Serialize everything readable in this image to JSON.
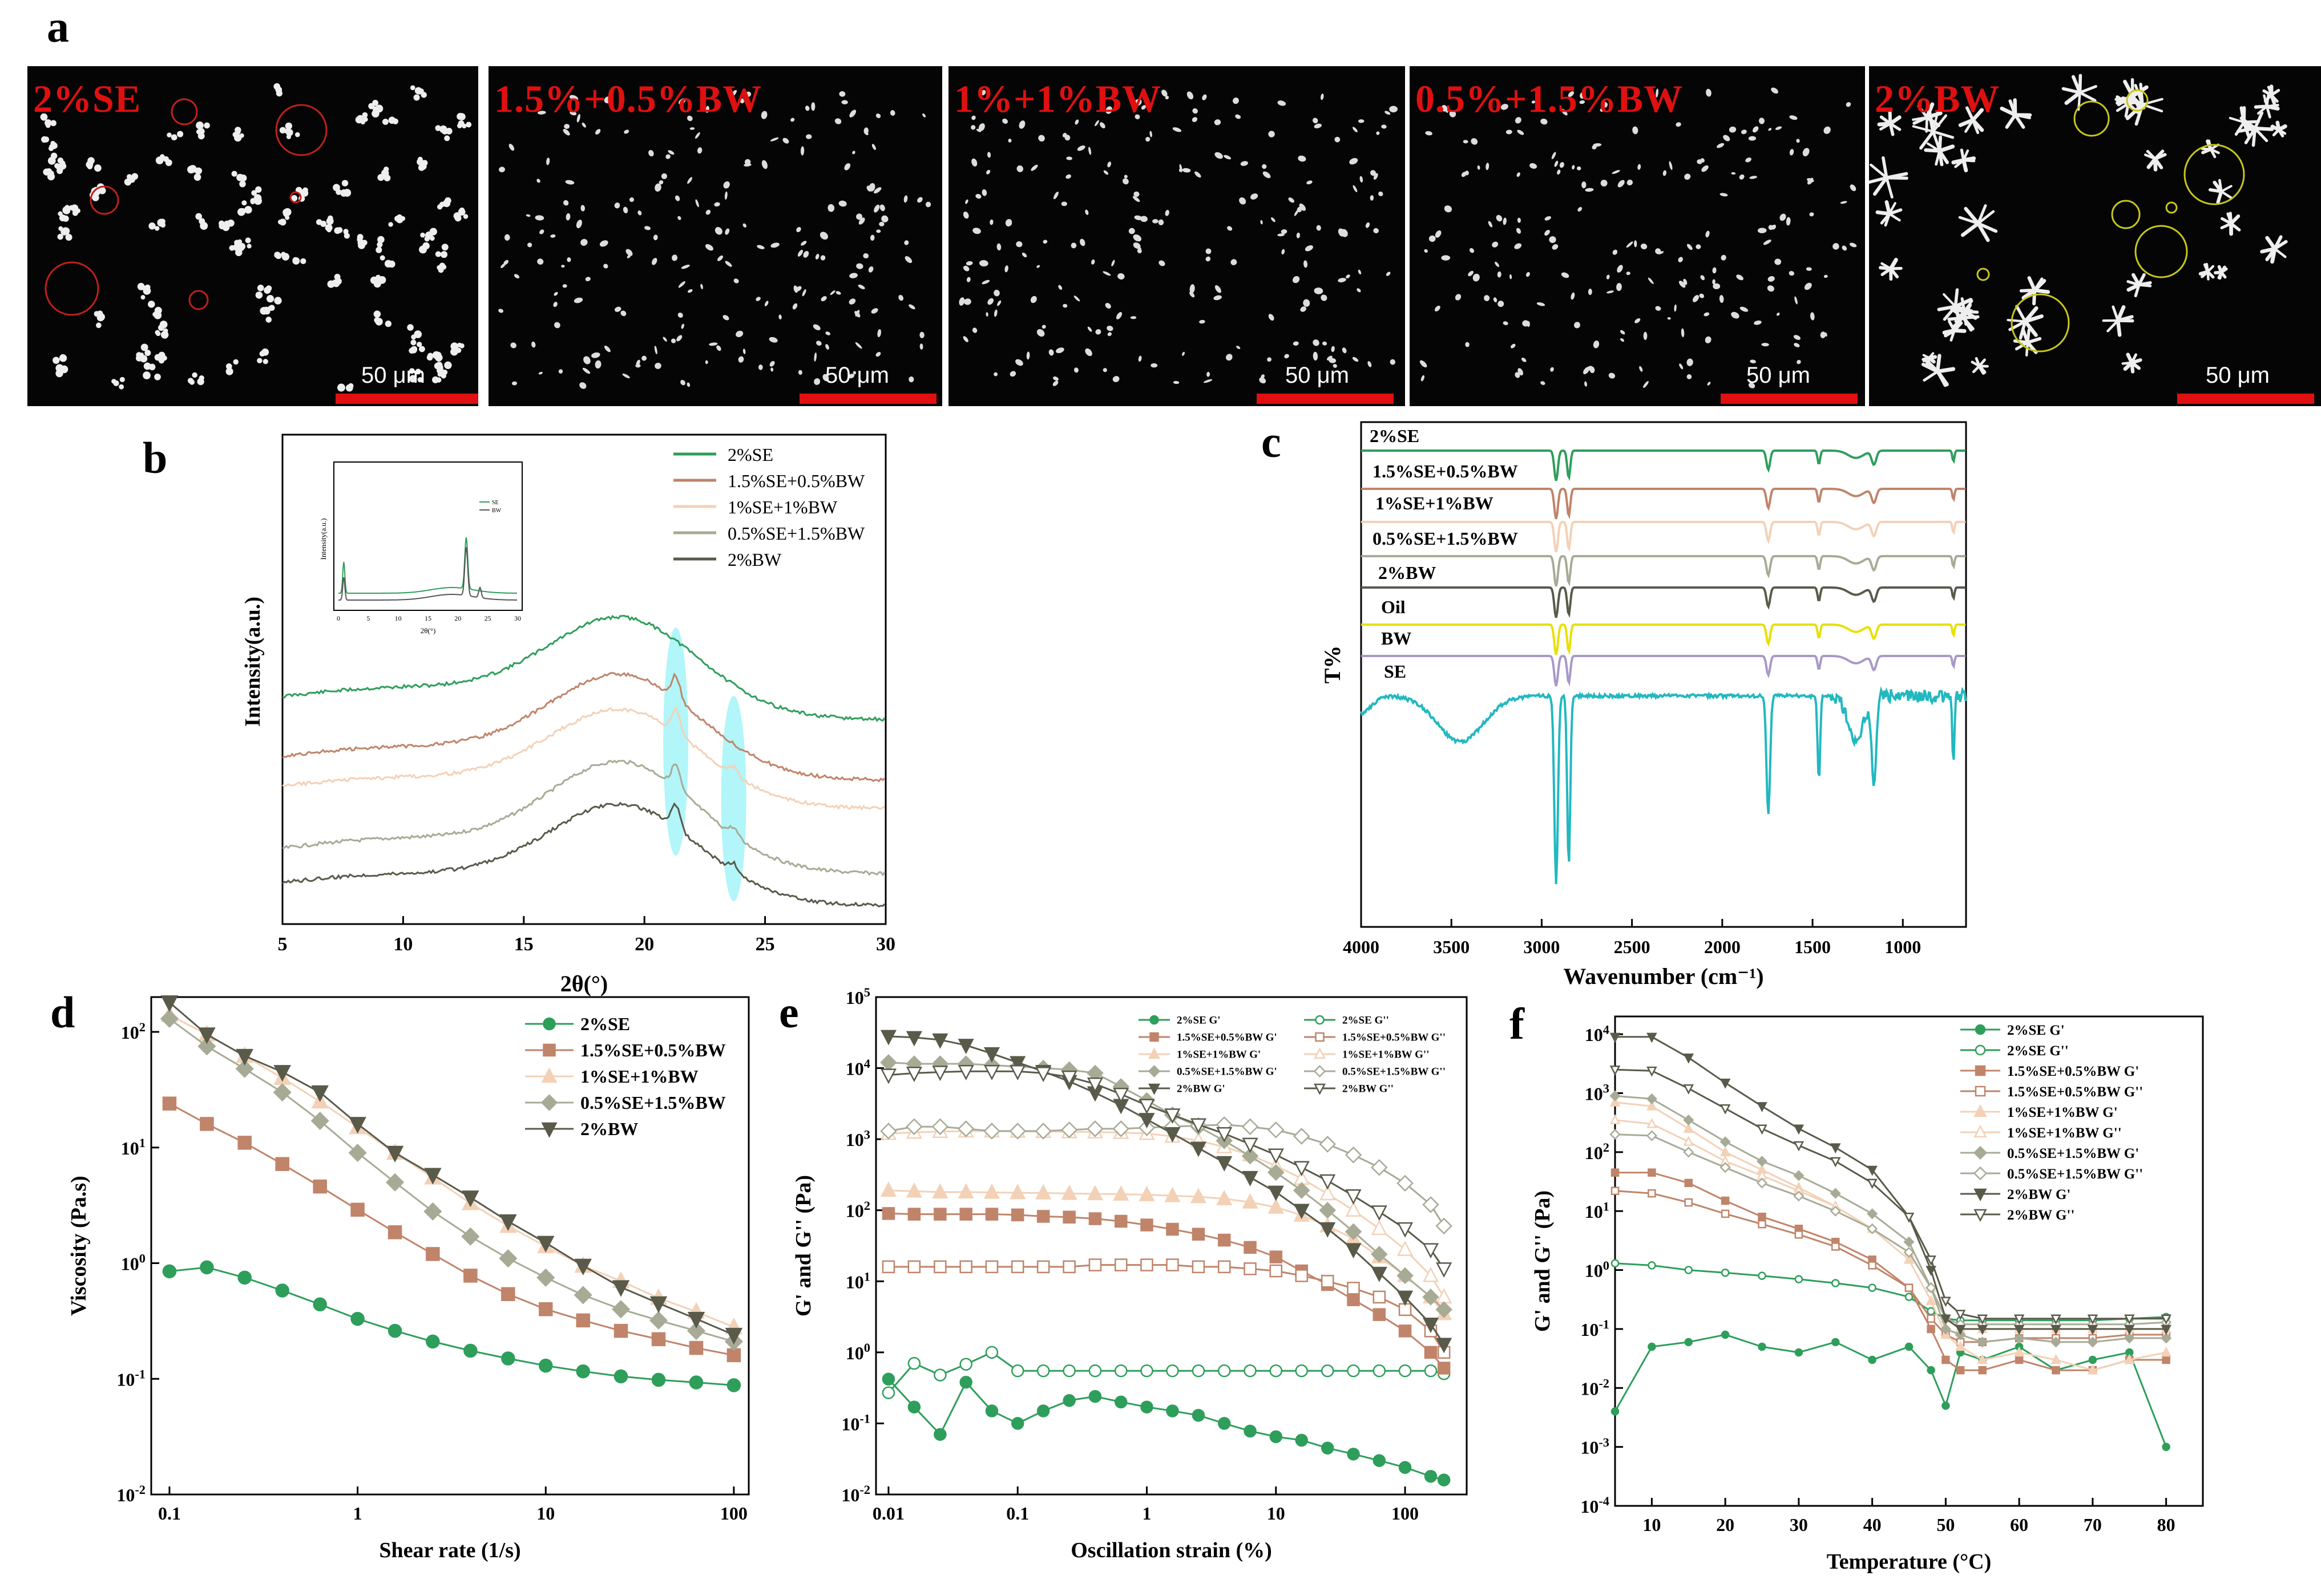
{
  "panels": {
    "a": "a",
    "b": "b",
    "c": "c",
    "d": "d",
    "e": "e",
    "f": "f"
  },
  "micrographs": [
    {
      "label": "2%SE",
      "scale": "50 μm"
    },
    {
      "label": "1.5%+0.5%BW",
      "scale": "50 μm"
    },
    {
      "label": "1%+1%BW",
      "scale": "50 μm"
    },
    {
      "label": "0.5%+1.5%BW",
      "scale": "50 μm"
    },
    {
      "label": "2%BW",
      "scale": "50 μm"
    }
  ],
  "colors": {
    "2%SE": "#2e9e5b",
    "1.5%SE+0.5%BW": "#c0846a",
    "1%SE+1%BW": "#f3d1b7",
    "0.5%SE+1.5%BW": "#a7ab96",
    "2%BW": "#5a5a4a",
    "Oil": "#e8e000",
    "BW": "#a898c8",
    "SE": "#22b8c0",
    "highlight": "#7ff0f5"
  },
  "chart_data": [
    {
      "id": "b",
      "type": "line",
      "xlabel": "2θ(°)",
      "ylabel": "Intensity(a.u.)",
      "xlim": [
        5,
        30
      ],
      "xticks": [
        "5",
        "10",
        "15",
        "20",
        "25",
        "30"
      ],
      "legend": [
        "2%SE",
        "1.5%SE+0.5%BW",
        "1%SE+1%BW",
        "0.5%SE+1.5%BW",
        "2%BW"
      ],
      "peak_position": 19.2,
      "highlight_positions": [
        21.3,
        23.7
      ],
      "inset": {
        "ylabel": "Intensity(a.u.)",
        "xlabel": "2θ(°)",
        "xticks": [
          "0",
          "5",
          "10",
          "15",
          "20",
          "25",
          "30"
        ],
        "legend": [
          "SE",
          "BW"
        ]
      }
    },
    {
      "id": "c",
      "type": "line",
      "xlabel": "Wavenumber (cm⁻¹)",
      "ylabel": "T%",
      "xlim": [
        4000,
        650
      ],
      "xticks": [
        "4000",
        "3500",
        "3000",
        "2500",
        "2000",
        "1500",
        "1000"
      ],
      "series_labels": [
        "2%SE",
        "1.5%SE+0.5%BW",
        "1%SE+1%BW",
        "0.5%SE+1.5%BW",
        "2%BW",
        "Oil",
        "BW",
        "SE"
      ],
      "absorption_bands": [
        2920,
        2850,
        1745,
        1465,
        1160,
        720
      ]
    },
    {
      "id": "d",
      "type": "line",
      "xlabel": "Shear rate (1/s)",
      "ylabel": "Viscosity (Pa.s)",
      "xscale": "log",
      "yscale": "log",
      "xlim": [
        0.08,
        120
      ],
      "ylim": [
        0.01,
        200
      ],
      "xticks": [
        "0.1",
        "1",
        "10",
        "100"
      ],
      "yticks": [
        "10⁻²",
        "10⁻¹",
        "10⁰",
        "10¹",
        "10²"
      ],
      "x": [
        0.1,
        0.158,
        0.251,
        0.398,
        0.631,
        1,
        1.58,
        2.51,
        3.98,
        6.31,
        10,
        15.8,
        25.1,
        39.8,
        63.1,
        100
      ],
      "series": [
        {
          "name": "2%SE",
          "marker": "circle",
          "values": [
            0.85,
            0.92,
            0.75,
            0.58,
            0.44,
            0.33,
            0.26,
            0.21,
            0.175,
            0.15,
            0.13,
            0.116,
            0.105,
            0.098,
            0.093,
            0.088
          ]
        },
        {
          "name": "1.5%SE+0.5%BW",
          "marker": "square",
          "values": [
            24,
            16,
            11,
            7.2,
            4.6,
            2.9,
            1.85,
            1.2,
            0.78,
            0.54,
            0.4,
            0.32,
            0.26,
            0.22,
            0.185,
            0.16
          ]
        },
        {
          "name": "1%SE+1%BW",
          "marker": "triangle-up",
          "values": [
            140,
            95,
            62,
            40,
            25,
            15,
            9,
            5.5,
            3.3,
            2.1,
            1.4,
            0.95,
            0.7,
            0.5,
            0.38,
            0.28
          ]
        },
        {
          "name": "0.5%SE+1.5%BW",
          "marker": "diamond",
          "values": [
            130,
            75,
            48,
            30,
            17,
            9,
            5,
            2.8,
            1.7,
            1.1,
            0.75,
            0.53,
            0.4,
            0.32,
            0.26,
            0.21
          ]
        },
        {
          "name": "2%BW",
          "marker": "triangle-down",
          "values": [
            180,
            95,
            62,
            45,
            30,
            16,
            9,
            5.8,
            3.7,
            2.3,
            1.5,
            0.95,
            0.62,
            0.45,
            0.33,
            0.24
          ]
        }
      ]
    },
    {
      "id": "e",
      "type": "line",
      "xlabel": "Oscillation strain (%)",
      "ylabel": "G' and G'' (Pa)",
      "xscale": "log",
      "yscale": "log",
      "xlim": [
        0.008,
        300
      ],
      "ylim": [
        0.01,
        100000
      ],
      "xticks": [
        "0.01",
        "0.1",
        "1",
        "10",
        "100"
      ],
      "yticks": [
        "10⁻²",
        "10⁻¹",
        "10⁰",
        "10¹",
        "10²",
        "10³",
        "10⁴",
        "10⁵"
      ],
      "x": [
        0.01,
        0.0158,
        0.0251,
        0.0398,
        0.0631,
        0.1,
        0.158,
        0.251,
        0.398,
        0.631,
        1,
        1.58,
        2.51,
        3.98,
        6.31,
        10,
        15.8,
        25.1,
        39.8,
        63.1,
        100,
        158,
        200
      ],
      "series": [
        {
          "name": "2%SE G'",
          "marker": "circle",
          "filled": true,
          "values": [
            0.42,
            0.17,
            0.07,
            0.38,
            0.15,
            0.1,
            0.15,
            0.21,
            0.24,
            0.2,
            0.17,
            0.15,
            0.13,
            0.1,
            0.078,
            0.065,
            0.058,
            0.045,
            0.037,
            0.03,
            0.024,
            0.018,
            0.016
          ]
        },
        {
          "name": "2%SE G''",
          "marker": "circle",
          "filled": false,
          "values": [
            0.27,
            0.7,
            0.48,
            0.68,
            1.0,
            0.55,
            0.55,
            0.55,
            0.55,
            0.55,
            0.55,
            0.55,
            0.55,
            0.55,
            0.55,
            0.55,
            0.55,
            0.55,
            0.55,
            0.55,
            0.55,
            0.55,
            0.5
          ]
        },
        {
          "name": "1.5%SE+0.5%BW G'",
          "marker": "square",
          "filled": true,
          "values": [
            90,
            88,
            88,
            88,
            88,
            86,
            82,
            80,
            76,
            70,
            62,
            54,
            46,
            38,
            30,
            22,
            14,
            9,
            5.5,
            3.4,
            2.0,
            1.0,
            0.6
          ]
        },
        {
          "name": "1.5%SE+0.5%BW G''",
          "marker": "square",
          "filled": false,
          "values": [
            16,
            16,
            16,
            16,
            16,
            16,
            16,
            16,
            17,
            17,
            17,
            17,
            16,
            16,
            15,
            14,
            12,
            10,
            8,
            6,
            4,
            2,
            1
          ]
        },
        {
          "name": "1%SE+1%BW G'",
          "marker": "triangle-up",
          "filled": true,
          "values": [
            190,
            185,
            180,
            180,
            178,
            176,
            175,
            172,
            170,
            168,
            165,
            160,
            155,
            145,
            130,
            110,
            85,
            60,
            40,
            22,
            12,
            6,
            3.5
          ]
        },
        {
          "name": "1%SE+1%BW G''",
          "marker": "triangle-up",
          "filled": false,
          "values": [
            1200,
            1250,
            1280,
            1300,
            1300,
            1290,
            1280,
            1270,
            1260,
            1240,
            1200,
            1100,
            950,
            780,
            600,
            420,
            280,
            170,
            100,
            55,
            28,
            12,
            6
          ]
        },
        {
          "name": "0.5%SE+1.5%BW G'",
          "marker": "diamond",
          "filled": true,
          "values": [
            12000,
            11500,
            11500,
            11500,
            11000,
            10500,
            10000,
            9500,
            8500,
            5500,
            3500,
            2200,
            1500,
            950,
            580,
            340,
            190,
            100,
            50,
            24,
            12,
            6,
            4
          ]
        },
        {
          "name": "0.5%SE+1.5%BW G''",
          "marker": "diamond",
          "filled": false,
          "values": [
            1300,
            1500,
            1500,
            1400,
            1300,
            1300,
            1300,
            1350,
            1400,
            1400,
            1450,
            1500,
            1550,
            1600,
            1500,
            1350,
            1100,
            850,
            600,
            400,
            240,
            120,
            60
          ]
        },
        {
          "name": "2%BW G'",
          "marker": "triangle-down",
          "filled": true,
          "values": [
            28000,
            27000,
            25000,
            21000,
            16000,
            12000,
            9000,
            6500,
            4500,
            3000,
            1900,
            1200,
            750,
            470,
            290,
            180,
            100,
            55,
            28,
            13,
            6,
            2.5,
            1.3
          ]
        },
        {
          "name": "2%BW G''",
          "marker": "triangle-down",
          "filled": false,
          "values": [
            8000,
            8500,
            8800,
            9000,
            9000,
            9000,
            8500,
            7500,
            6000,
            4300,
            3000,
            2200,
            1600,
            1200,
            850,
            600,
            400,
            260,
            160,
            95,
            55,
            28,
            15
          ]
        }
      ]
    },
    {
      "id": "f",
      "type": "line",
      "xlabel": "Temperature (°C)",
      "ylabel": "G' and G'' (Pa)",
      "yscale": "log",
      "xlim": [
        5,
        85
      ],
      "ylim": [
        0.0001,
        20000
      ],
      "xticks": [
        "10",
        "20",
        "30",
        "40",
        "50",
        "60",
        "70",
        "80"
      ],
      "yticks": [
        "10⁻⁴",
        "10⁻³",
        "10⁻²",
        "10⁻¹",
        "10⁰",
        "10¹",
        "10²",
        "10³",
        "10⁴"
      ],
      "x": [
        5,
        10,
        15,
        20,
        25,
        30,
        35,
        40,
        45,
        48,
        50,
        52,
        55,
        60,
        65,
        70,
        75,
        80
      ],
      "series": [
        {
          "name": "2%SE G'",
          "marker": "circle",
          "filled": true,
          "values": [
            0.004,
            0.05,
            0.06,
            0.08,
            0.05,
            0.04,
            0.06,
            0.03,
            0.05,
            0.02,
            0.005,
            0.04,
            0.03,
            0.05,
            0.02,
            0.03,
            0.04,
            0.001
          ]
        },
        {
          "name": "2%SE G''",
          "marker": "circle",
          "filled": false,
          "values": [
            1.3,
            1.2,
            1.0,
            0.9,
            0.8,
            0.7,
            0.6,
            0.5,
            0.35,
            0.2,
            0.15,
            0.14,
            0.14,
            0.14,
            0.14,
            0.14,
            0.15,
            0.16
          ]
        },
        {
          "name": "1.5%SE+0.5%BW G'",
          "marker": "square",
          "filled": true,
          "values": [
            45,
            45,
            30,
            15,
            8,
            5,
            3,
            1.5,
            0.5,
            0.1,
            0.03,
            0.02,
            0.02,
            0.03,
            0.02,
            0.02,
            0.03,
            0.03
          ]
        },
        {
          "name": "1.5%SE+0.5%BW G''",
          "marker": "square",
          "filled": false,
          "values": [
            22,
            20,
            14,
            9,
            6,
            4,
            2.5,
            1.2,
            0.5,
            0.15,
            0.08,
            0.06,
            0.06,
            0.07,
            0.07,
            0.07,
            0.08,
            0.08
          ]
        },
        {
          "name": "1%SE+1%BW G'",
          "marker": "triangle-up",
          "filled": true,
          "values": [
            700,
            600,
            250,
            100,
            50,
            25,
            12,
            5,
            1.5,
            0.3,
            0.08,
            0.05,
            0.03,
            0.04,
            0.03,
            0.02,
            0.03,
            0.04
          ]
        },
        {
          "name": "1%SE+1%BW G''",
          "marker": "triangle-up",
          "filled": false,
          "values": [
            350,
            300,
            150,
            70,
            40,
            22,
            12,
            5,
            2,
            0.5,
            0.15,
            0.1,
            0.1,
            0.1,
            0.1,
            0.1,
            0.1,
            0.1
          ]
        },
        {
          "name": "0.5%SE+1.5%BW G'",
          "marker": "diamond",
          "filled": true,
          "values": [
            900,
            800,
            350,
            150,
            70,
            40,
            20,
            9,
            3,
            0.5,
            0.1,
            0.08,
            0.06,
            0.07,
            0.06,
            0.06,
            0.07,
            0.07
          ]
        },
        {
          "name": "0.5%SE+1.5%BW G''",
          "marker": "diamond",
          "filled": false,
          "values": [
            200,
            190,
            100,
            55,
            30,
            18,
            10,
            5,
            2,
            0.5,
            0.15,
            0.12,
            0.12,
            0.12,
            0.12,
            0.12,
            0.12,
            0.13
          ]
        },
        {
          "name": "2%BW G'",
          "marker": "triangle-down",
          "filled": true,
          "values": [
            9000,
            9000,
            4000,
            1500,
            600,
            250,
            120,
            50,
            8,
            1,
            0.15,
            0.1,
            0.1,
            0.1,
            0.1,
            0.1,
            0.1,
            0.1
          ]
        },
        {
          "name": "2%BW G''",
          "marker": "triangle-down",
          "filled": false,
          "values": [
            2500,
            2400,
            1200,
            550,
            250,
            130,
            70,
            30,
            8,
            1.5,
            0.3,
            0.18,
            0.15,
            0.15,
            0.15,
            0.15,
            0.15,
            0.15
          ]
        }
      ]
    }
  ]
}
